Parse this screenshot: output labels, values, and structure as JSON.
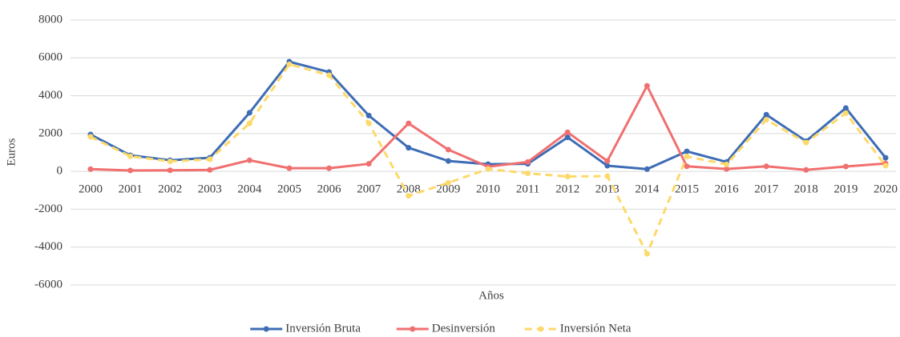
{
  "chart_data": {
    "type": "line",
    "x_label": "Años",
    "y_label": "Euros",
    "categories": [
      "2000",
      "2001",
      "2002",
      "2003",
      "2004",
      "2005",
      "2006",
      "2007",
      "2008",
      "2009",
      "2010",
      "2011",
      "2012",
      "2013",
      "2014",
      "2015",
      "2016",
      "2017",
      "2018",
      "2019",
      "2020"
    ],
    "series": [
      {
        "name": "Inversión Bruta",
        "color": "#3e6db5",
        "dashed": false,
        "values": [
          1950,
          850,
          590,
          720,
          3100,
          5800,
          5250,
          2950,
          1250,
          550,
          380,
          400,
          1800,
          300,
          120,
          1060,
          500,
          3000,
          1600,
          3350,
          720
        ]
      },
      {
        "name": "Desinversión",
        "color": "#f07070",
        "dashed": false,
        "values": [
          120,
          50,
          60,
          80,
          590,
          170,
          170,
          400,
          2540,
          1150,
          250,
          500,
          2070,
          550,
          4520,
          270,
          130,
          270,
          80,
          260,
          420
        ]
      },
      {
        "name": "Inversión Neta",
        "color": "#fdd96a",
        "dashed": true,
        "values": [
          1830,
          800,
          530,
          640,
          2540,
          5660,
          5080,
          2550,
          -1290,
          -600,
          130,
          -100,
          -270,
          -250,
          -4350,
          790,
          370,
          2730,
          1520,
          3080,
          300
        ]
      }
    ],
    "ylim": [
      -6000,
      8000
    ],
    "yticks": [
      -6000,
      -4000,
      -2000,
      0,
      2000,
      4000,
      6000,
      8000
    ],
    "grid": true,
    "legend": "bottom"
  }
}
